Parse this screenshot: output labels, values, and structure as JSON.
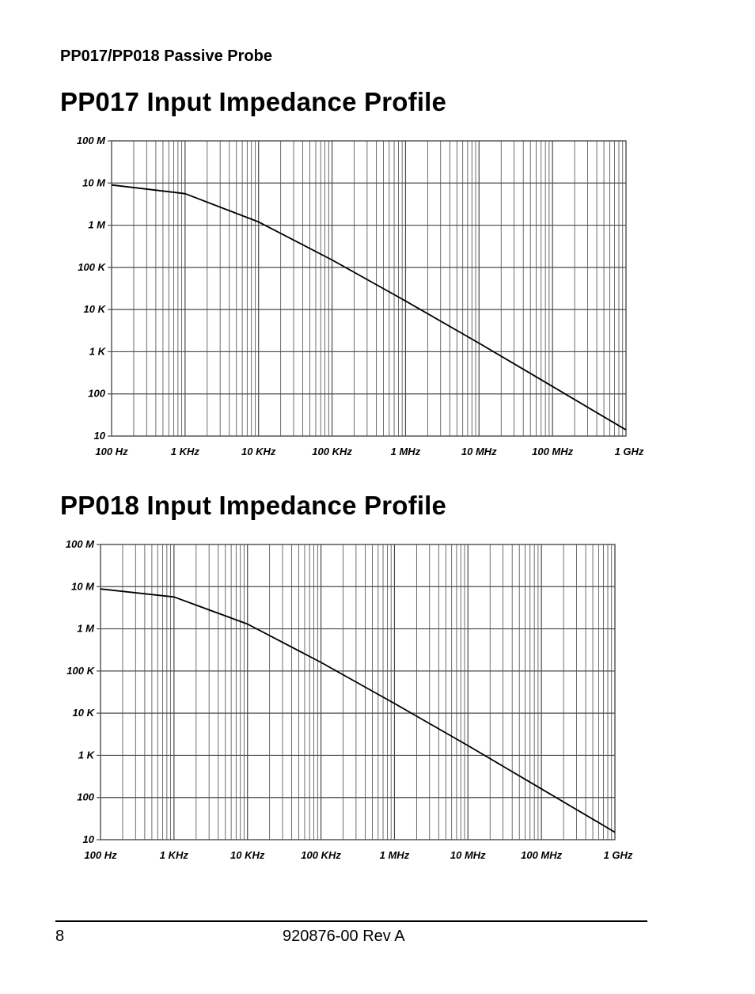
{
  "header": {
    "running_title": "PP017/PP018 Passive Probe"
  },
  "footer": {
    "page_number": "8",
    "doc_id": "920876-00 Rev A"
  },
  "colors": {
    "grid": "#4a4a4a",
    "trace": "#000000",
    "background": "#ffffff"
  },
  "chart_data": [
    {
      "type": "line",
      "title": "PP017 Input Impedance Profile",
      "xscale": "log",
      "yscale": "log",
      "xlim": [
        100,
        1000000000
      ],
      "ylim": [
        10,
        100000000
      ],
      "x_ticks": [
        100,
        1000,
        10000,
        100000,
        1000000,
        10000000,
        100000000,
        1000000000
      ],
      "x_tick_labels": [
        "100 Hz",
        "1 KHz",
        "10 KHz",
        "100 KHz",
        "1 MHz",
        "10 MHz",
        "100 MHz",
        "1 GHz"
      ],
      "y_ticks": [
        10,
        100,
        1000,
        10000,
        100000,
        1000000,
        10000000,
        100000000
      ],
      "y_tick_labels": [
        "10",
        "100",
        "1 K",
        "10 K",
        "100 K",
        "1 M",
        "10 M",
        "100 M"
      ],
      "grid": true,
      "series": [
        {
          "name": "Input Impedance",
          "x": [
            100,
            1000,
            10000,
            100000,
            1000000,
            10000000,
            100000000,
            1000000000
          ],
          "y": [
            9000000,
            5600000,
            1200000,
            150000,
            16000,
            1600,
            150,
            14
          ]
        }
      ]
    },
    {
      "type": "line",
      "title": "PP018 Input Impedance Profile",
      "xscale": "log",
      "yscale": "log",
      "xlim": [
        100,
        1000000000
      ],
      "ylim": [
        10,
        100000000
      ],
      "x_ticks": [
        100,
        1000,
        10000,
        100000,
        1000000,
        10000000,
        100000000,
        1000000000
      ],
      "x_tick_labels": [
        "100 Hz",
        "1 KHz",
        "10 KHz",
        "100 KHz",
        "1 MHz",
        "10 MHz",
        "100 MHz",
        "1 GHz"
      ],
      "y_ticks": [
        10,
        100,
        1000,
        10000,
        100000,
        1000000,
        10000000,
        100000000
      ],
      "y_tick_labels": [
        "10",
        "100",
        "1 K",
        "10 K",
        "100 K",
        "1 M",
        "10 M",
        "100 M"
      ],
      "grid": true,
      "series": [
        {
          "name": "Input Impedance",
          "x": [
            100,
            1000,
            10000,
            100000,
            1000000,
            10000000,
            100000000,
            1000000000
          ],
          "y": [
            8800000,
            5700000,
            1300000,
            160000,
            17000,
            1700,
            160,
            15
          ]
        }
      ]
    }
  ]
}
